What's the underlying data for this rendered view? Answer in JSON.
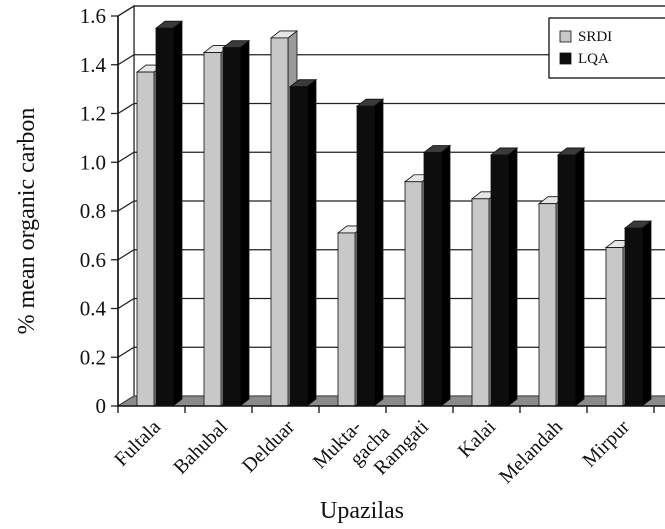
{
  "chart_data": {
    "type": "bar",
    "categories": [
      "Fultala",
      "Bahubal",
      "Delduar",
      "Mukta-gacha",
      "Ramgati",
      "Kalai",
      "Melandah",
      "Mirpur"
    ],
    "category_lines": [
      [
        "Fultala"
      ],
      [
        "Bahubal"
      ],
      [
        "Delduar"
      ],
      [
        "Mukta-",
        "gacha"
      ],
      [
        "Ramgati"
      ],
      [
        "Kalai"
      ],
      [
        "Melandah"
      ],
      [
        "Mirpur"
      ]
    ],
    "series": [
      {
        "name": "SRDI",
        "values": [
          1.37,
          1.45,
          1.51,
          0.71,
          0.92,
          0.85,
          0.83,
          0.65
        ]
      },
      {
        "name": "LQA",
        "values": [
          1.55,
          1.47,
          1.31,
          1.23,
          1.04,
          1.03,
          1.03,
          0.73
        ]
      }
    ],
    "xlabel": "Upazilas",
    "ylabel": "% mean organic carbon",
    "ylim": [
      0,
      1.6
    ],
    "yticks": [
      "0",
      "0.2",
      "0.4",
      "0.6",
      "0.8",
      "1.0",
      "1.2",
      "1.4",
      "1.6"
    ],
    "grid": true,
    "legend_position": "top-right",
    "three_d": true,
    "colors": {
      "SRDI": "#c8c8c8",
      "LQA": "#0d0d0d",
      "floor": "#8a8a8a"
    }
  }
}
